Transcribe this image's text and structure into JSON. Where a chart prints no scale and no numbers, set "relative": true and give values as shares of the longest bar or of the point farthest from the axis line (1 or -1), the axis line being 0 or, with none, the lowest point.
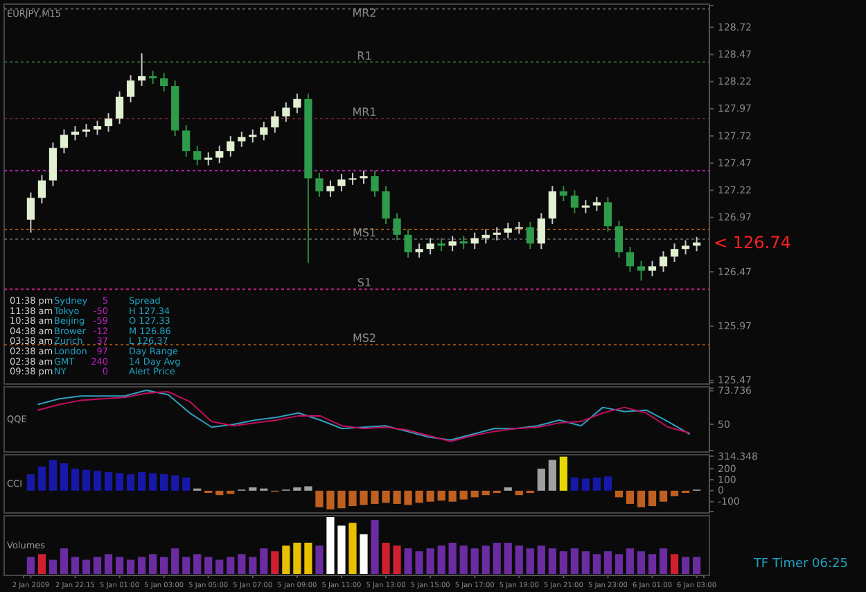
{
  "chart_data": [
    {
      "type": "candlestick",
      "title": "EURJPY,M15",
      "categories": [
        null,
        null,
        null,
        null,
        null,
        null,
        null,
        null,
        null,
        null,
        null,
        null,
        null,
        null,
        null,
        null,
        null,
        null,
        null,
        null,
        null,
        null,
        null,
        null,
        null,
        null,
        null,
        null,
        null,
        null,
        null,
        null,
        null,
        null,
        null,
        null,
        null,
        null,
        null,
        null,
        null,
        null,
        null,
        null,
        null,
        null,
        null,
        null,
        null,
        null,
        null,
        null,
        null,
        null,
        null,
        null,
        null,
        null,
        null,
        null,
        null
      ],
      "ohlc": [
        [
          126.95,
          127.2,
          126.83,
          127.15
        ],
        [
          127.15,
          127.36,
          127.1,
          127.31
        ],
        [
          127.31,
          127.66,
          127.26,
          127.61
        ],
        [
          127.61,
          127.78,
          127.56,
          127.73
        ],
        [
          127.73,
          127.81,
          127.68,
          127.76
        ],
        [
          127.76,
          127.83,
          127.71,
          127.78
        ],
        [
          127.78,
          127.86,
          127.73,
          127.81
        ],
        [
          127.81,
          127.93,
          127.76,
          127.88
        ],
        [
          127.88,
          128.13,
          127.83,
          128.08
        ],
        [
          128.08,
          128.28,
          128.03,
          128.23
        ],
        [
          128.23,
          128.48,
          128.18,
          128.27
        ],
        [
          128.27,
          128.32,
          128.2,
          128.25
        ],
        [
          128.25,
          128.3,
          128.13,
          128.18
        ],
        [
          128.18,
          128.23,
          127.72,
          127.77
        ],
        [
          127.77,
          127.82,
          127.53,
          127.58
        ],
        [
          127.58,
          127.63,
          127.45,
          127.5
        ],
        [
          127.5,
          127.57,
          127.45,
          127.52
        ],
        [
          127.52,
          127.63,
          127.47,
          127.58
        ],
        [
          127.58,
          127.72,
          127.53,
          127.67
        ],
        [
          127.67,
          127.76,
          127.62,
          127.71
        ],
        [
          127.71,
          127.78,
          127.66,
          127.73
        ],
        [
          127.73,
          127.85,
          127.68,
          127.8
        ],
        [
          127.8,
          127.95,
          127.75,
          127.9
        ],
        [
          127.9,
          128.03,
          127.85,
          127.98
        ],
        [
          127.98,
          128.11,
          127.93,
          128.06
        ],
        [
          128.06,
          128.11,
          126.55,
          127.33
        ],
        [
          127.33,
          127.38,
          127.16,
          127.21
        ],
        [
          127.21,
          127.31,
          127.16,
          127.26
        ],
        [
          127.26,
          127.37,
          127.21,
          127.32
        ],
        [
          127.32,
          127.38,
          127.27,
          127.33
        ],
        [
          127.33,
          127.4,
          127.28,
          127.35
        ],
        [
          127.35,
          127.4,
          127.16,
          127.21
        ],
        [
          127.21,
          127.26,
          126.91,
          126.96
        ],
        [
          126.96,
          127.01,
          126.76,
          126.81
        ],
        [
          126.81,
          126.86,
          126.6,
          126.65
        ],
        [
          126.65,
          126.73,
          126.6,
          126.68
        ],
        [
          126.68,
          126.78,
          126.63,
          126.73
        ],
        [
          126.73,
          126.78,
          126.66,
          126.71
        ],
        [
          126.71,
          126.8,
          126.66,
          126.75
        ],
        [
          126.75,
          126.8,
          126.68,
          126.73
        ],
        [
          126.73,
          126.83,
          126.68,
          126.78
        ],
        [
          126.78,
          126.86,
          126.73,
          126.81
        ],
        [
          126.81,
          126.88,
          126.76,
          126.83
        ],
        [
          126.83,
          126.92,
          126.78,
          126.87
        ],
        [
          126.87,
          126.93,
          126.82,
          126.88
        ],
        [
          126.88,
          126.93,
          126.68,
          126.73
        ],
        [
          126.73,
          127.01,
          126.68,
          126.96
        ],
        [
          126.96,
          127.26,
          126.91,
          127.21
        ],
        [
          127.21,
          127.26,
          127.12,
          127.17
        ],
        [
          127.17,
          127.22,
          127.01,
          127.06
        ],
        [
          127.06,
          127.13,
          127.01,
          127.08
        ],
        [
          127.08,
          127.16,
          127.03,
          127.11
        ],
        [
          127.11,
          127.16,
          126.84,
          126.89
        ],
        [
          126.89,
          126.94,
          126.6,
          126.65
        ],
        [
          126.65,
          126.7,
          126.47,
          126.52
        ],
        [
          126.52,
          126.57,
          126.39,
          126.48
        ],
        [
          126.48,
          126.57,
          126.43,
          126.52
        ],
        [
          126.52,
          126.66,
          126.47,
          126.61
        ],
        [
          126.61,
          126.73,
          126.56,
          126.68
        ],
        [
          126.68,
          126.76,
          126.63,
          126.71
        ],
        [
          126.71,
          126.79,
          126.66,
          126.74
        ]
      ],
      "ylim": [
        125.45,
        128.92
      ],
      "yticks": [
        125.47,
        125.97,
        126.47,
        126.97,
        127.22,
        127.47,
        127.72,
        127.97,
        128.22,
        128.47,
        128.72
      ],
      "tick_labels": "y",
      "ref_lines": [
        {
          "axis": "y",
          "value": 128.89,
          "label": "MR2",
          "color": "#555555"
        },
        {
          "axis": "y",
          "value": 128.4,
          "label": "R1",
          "color": "#2a6a3a"
        },
        {
          "axis": "y",
          "value": 127.88,
          "label": "MR1",
          "color": "#6a2030"
        },
        {
          "axis": "y",
          "value": 127.4,
          "label": null,
          "color": "#c020c0"
        },
        {
          "axis": "y",
          "value": 126.86,
          "label": null,
          "color": "#a05010"
        },
        {
          "axis": "y",
          "value": 126.77,
          "label": "MS1",
          "color": "#555555"
        },
        {
          "axis": "y",
          "value": 126.31,
          "label": "S1",
          "color": "#c02080"
        },
        {
          "axis": "y",
          "value": 125.8,
          "label": "MS2",
          "color": "#a05010"
        }
      ],
      "annotations": [
        "< 126.74",
        "01:38 pm",
        "Sydney",
        "5",
        "Spread",
        "11:38 am",
        "Tokyo",
        "-50",
        "H  127.34",
        "10:38 am",
        "Beijing",
        "-59",
        "O  127.33",
        "04:38 am",
        "Brower",
        "-12",
        "M  126.86",
        "03:38 am",
        "Zurich",
        "37",
        "L  126.37",
        "02:38 am",
        "London",
        "97",
        "Day Range",
        "02:38 am",
        "GMT",
        "240",
        "14 Day Avg",
        "09:38 pm",
        "NY",
        "0",
        "Alert Price"
      ]
    },
    {
      "type": "line",
      "title": "QQE",
      "categories": [
        null,
        null,
        null,
        null,
        null,
        null,
        null,
        null,
        null,
        null,
        null,
        null,
        null,
        null,
        null,
        null,
        null,
        null,
        null,
        null,
        null,
        null,
        null,
        null,
        null,
        null,
        null,
        null,
        null,
        null,
        null
      ],
      "series": [
        {
          "color": "#30a0c0",
          "values": [
            64,
            68,
            70,
            70,
            70,
            74,
            71,
            58,
            48,
            50,
            53,
            55,
            58,
            53,
            47,
            48,
            49,
            45,
            41,
            39,
            43,
            47,
            47,
            49,
            53,
            49,
            62,
            59,
            60,
            52,
            43
          ]
        },
        {
          "color": "#c01060",
          "values": [
            60,
            64,
            67,
            68,
            69,
            72,
            73,
            66,
            52,
            49,
            51,
            53,
            56,
            56,
            49,
            47,
            48,
            46,
            42,
            38,
            42,
            45,
            47,
            48,
            51,
            52,
            58,
            62,
            58,
            48,
            44
          ]
        }
      ],
      "ylim": [
        31.5,
        75.5
      ],
      "yticks": [
        73.736,
        50
      ],
      "tick_labels": "y"
    },
    {
      "type": "bar",
      "title": "CCI",
      "categories": [
        null,
        null,
        null,
        null,
        null,
        null,
        null,
        null,
        null,
        null,
        null,
        null,
        null,
        null,
        null,
        null,
        null,
        null,
        null,
        null,
        null,
        null,
        null,
        null,
        null,
        null,
        null,
        null,
        null,
        null,
        null,
        null,
        null,
        null,
        null,
        null,
        null,
        null,
        null,
        null,
        null,
        null,
        null,
        null,
        null,
        null,
        null,
        null,
        null,
        null,
        null,
        null,
        null,
        null,
        null,
        null,
        null,
        null,
        null,
        null,
        null
      ],
      "values": [
        150,
        220,
        280,
        250,
        200,
        190,
        180,
        170,
        160,
        150,
        170,
        160,
        150,
        140,
        120,
        20,
        -20,
        -40,
        -30,
        10,
        30,
        20,
        -10,
        10,
        30,
        40,
        -150,
        -170,
        -160,
        -140,
        -130,
        -120,
        -110,
        -120,
        -130,
        -110,
        -100,
        -90,
        -100,
        -80,
        -60,
        -40,
        -20,
        30,
        -40,
        -20,
        200,
        280,
        310,
        120,
        110,
        120,
        130,
        -60,
        -120,
        -150,
        -140,
        -100,
        -50,
        -20,
        10
      ],
      "colors": [
        "#1818a8",
        "#1818a8",
        "#1818a8",
        "#1818a8",
        "#1818a8",
        "#1818a8",
        "#1818a8",
        "#1818a8",
        "#1818a8",
        "#1818a8",
        "#1818a8",
        "#1818a8",
        "#1818a8",
        "#1818a8",
        "#1818a8",
        "#a0a0a0",
        "#c06020",
        "#c06020",
        "#c06020",
        "#a0a0a0",
        "#a0a0a0",
        "#a0a0a0",
        "#c06020",
        "#a0a0a0",
        "#a0a0a0",
        "#a0a0a0",
        "#c06020",
        "#c06020",
        "#c06020",
        "#c06020",
        "#c06020",
        "#c06020",
        "#c06020",
        "#c06020",
        "#c06020",
        "#c06020",
        "#c06020",
        "#c06020",
        "#c06020",
        "#c06020",
        "#c06020",
        "#c06020",
        "#c06020",
        "#a0a0a0",
        "#c06020",
        "#c06020",
        "#a0a0a0",
        "#a0a0a0",
        "#e8d800",
        "#1818a8",
        "#1818a8",
        "#1818a8",
        "#1818a8",
        "#c06020",
        "#c06020",
        "#c06020",
        "#c06020",
        "#c06020",
        "#c06020",
        "#c06020",
        "#a0a0a0"
      ],
      "ylim": [
        -190,
        314.348
      ],
      "yticks": [
        314.348,
        200,
        100,
        0,
        -100
      ],
      "tick_labels": "y"
    },
    {
      "type": "bar",
      "title": "Volumes",
      "relative": true,
      "categories": [
        "2 Jan 2009",
        null,
        null,
        null,
        "2 Jan 22:15",
        null,
        null,
        null,
        "5 Jan 01:00",
        null,
        null,
        null,
        "5 Jan 03:00",
        null,
        null,
        null,
        "5 Jan 05:00",
        null,
        null,
        null,
        "5 Jan 07:00",
        null,
        null,
        null,
        "5 Jan 09:00",
        null,
        null,
        null,
        "5 Jan 11:00",
        null,
        null,
        null,
        "5 Jan 13:00",
        null,
        null,
        null,
        "5 Jan 15:00",
        null,
        null,
        null,
        "5 Jan 17:00",
        null,
        null,
        null,
        "5 Jan 19:00",
        null,
        null,
        null,
        "5 Jan 21:00",
        null,
        null,
        null,
        "5 Jan 23:00",
        null,
        null,
        null,
        "6 Jan 01:00",
        null,
        null,
        null,
        "6 Jan 03:00"
      ],
      "values": [
        0.3,
        0.35,
        0.25,
        0.45,
        0.3,
        0.25,
        0.3,
        0.35,
        0.3,
        0.25,
        0.3,
        0.35,
        0.3,
        0.45,
        0.3,
        0.35,
        0.3,
        0.25,
        0.3,
        0.35,
        0.3,
        0.45,
        0.4,
        0.5,
        0.55,
        0.55,
        0.5,
        1.0,
        0.85,
        0.9,
        0.7,
        0.95,
        0.55,
        0.5,
        0.45,
        0.4,
        0.45,
        0.5,
        0.55,
        0.5,
        0.45,
        0.5,
        0.55,
        0.55,
        0.5,
        0.45,
        0.5,
        0.45,
        0.4,
        0.45,
        0.4,
        0.35,
        0.4,
        0.35,
        0.45,
        0.4,
        0.35,
        0.45,
        0.35,
        0.3,
        0.3
      ],
      "colors": [
        "#6a2ca0",
        "#d02030",
        "#6a2ca0",
        "#6a2ca0",
        "#6a2ca0",
        "#6a2ca0",
        "#6a2ca0",
        "#6a2ca0",
        "#6a2ca0",
        "#6a2ca0",
        "#6a2ca0",
        "#6a2ca0",
        "#6a2ca0",
        "#6a2ca0",
        "#6a2ca0",
        "#6a2ca0",
        "#6a2ca0",
        "#6a2ca0",
        "#6a2ca0",
        "#6a2ca0",
        "#6a2ca0",
        "#6a2ca0",
        "#d02030",
        "#e8c000",
        "#e8c000",
        "#e8c000",
        "#6a2ca0",
        "#ffffff",
        "#ffffff",
        "#e8c000",
        "#ffffff",
        "#6a2ca0",
        "#d02030",
        "#d02030",
        "#6a2ca0",
        "#6a2ca0",
        "#6a2ca0",
        "#6a2ca0",
        "#6a2ca0",
        "#6a2ca0",
        "#6a2ca0",
        "#6a2ca0",
        "#6a2ca0",
        "#6a2ca0",
        "#6a2ca0",
        "#6a2ca0",
        "#6a2ca0",
        "#6a2ca0",
        "#6a2ca0",
        "#6a2ca0",
        "#6a2ca0",
        "#6a2ca0",
        "#6a2ca0",
        "#6a2ca0",
        "#6a2ca0",
        "#6a2ca0",
        "#6a2ca0",
        "#6a2ca0",
        "#d02030",
        "#6a2ca0",
        "#6a2ca0"
      ],
      "annotations": [
        "TF Timer   06:25"
      ]
    }
  ]
}
